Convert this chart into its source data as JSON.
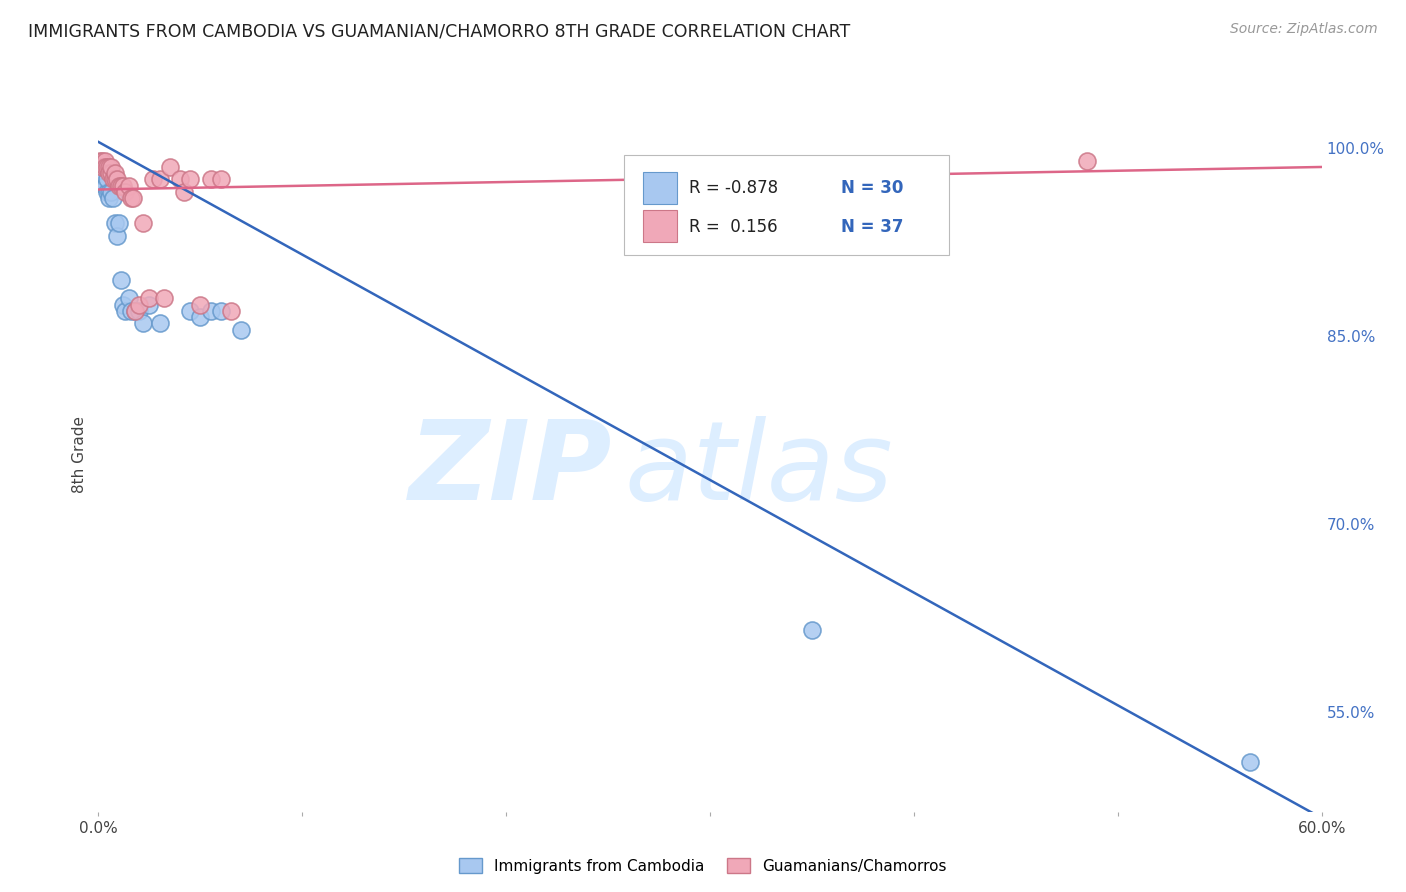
{
  "title": "IMMIGRANTS FROM CAMBODIA VS GUAMANIAN/CHAMORRO 8TH GRADE CORRELATION CHART",
  "source": "Source: ZipAtlas.com",
  "ylabel": "8th Grade",
  "xlim": [
    0.0,
    0.6
  ],
  "ylim": [
    0.47,
    1.04
  ],
  "x_ticks": [
    0.0,
    0.1,
    0.2,
    0.3,
    0.4,
    0.5,
    0.6
  ],
  "x_tick_labels": [
    "0.0%",
    "",
    "",
    "",
    "",
    "",
    "60.0%"
  ],
  "y_ticks_right": [
    0.55,
    0.7,
    0.85,
    1.0
  ],
  "y_tick_labels_right": [
    "55.0%",
    "70.0%",
    "85.0%",
    "100.0%"
  ],
  "grid_color": "#c8c8c8",
  "background_color": "#ffffff",
  "legend_r1": "R = -0.878",
  "legend_n1": "N = 30",
  "legend_r2": "R =  0.156",
  "legend_n2": "N = 37",
  "blue_color": "#a8c8f0",
  "blue_edge_color": "#6699cc",
  "pink_color": "#f0a8b8",
  "pink_edge_color": "#cc7788",
  "blue_line_color": "#3366bb",
  "pink_line_color": "#dd6688",
  "watermark_zip": "ZIP",
  "watermark_atlas": "atlas",
  "watermark_color": "#ddeeff",
  "blue_scatter_x": [
    0.001,
    0.002,
    0.003,
    0.003,
    0.004,
    0.004,
    0.005,
    0.005,
    0.006,
    0.007,
    0.008,
    0.009,
    0.01,
    0.011,
    0.012,
    0.013,
    0.015,
    0.016,
    0.018,
    0.02,
    0.022,
    0.025,
    0.03,
    0.045,
    0.05,
    0.055,
    0.06,
    0.07,
    0.35,
    0.565
  ],
  "blue_scatter_y": [
    0.98,
    0.975,
    0.97,
    0.97,
    0.965,
    0.975,
    0.965,
    0.96,
    0.965,
    0.96,
    0.94,
    0.93,
    0.94,
    0.895,
    0.875,
    0.87,
    0.88,
    0.87,
    0.87,
    0.87,
    0.86,
    0.875,
    0.86,
    0.87,
    0.865,
    0.87,
    0.87,
    0.855,
    0.615,
    0.51
  ],
  "pink_scatter_x": [
    0.001,
    0.002,
    0.002,
    0.003,
    0.003,
    0.004,
    0.005,
    0.005,
    0.006,
    0.006,
    0.007,
    0.008,
    0.008,
    0.009,
    0.01,
    0.011,
    0.012,
    0.013,
    0.015,
    0.016,
    0.017,
    0.018,
    0.02,
    0.022,
    0.025,
    0.027,
    0.03,
    0.032,
    0.035,
    0.04,
    0.042,
    0.045,
    0.05,
    0.055,
    0.06,
    0.065,
    0.485
  ],
  "pink_scatter_y": [
    0.99,
    0.99,
    0.985,
    0.99,
    0.985,
    0.985,
    0.985,
    0.98,
    0.98,
    0.985,
    0.975,
    0.975,
    0.98,
    0.975,
    0.97,
    0.97,
    0.97,
    0.965,
    0.97,
    0.96,
    0.96,
    0.87,
    0.875,
    0.94,
    0.88,
    0.975,
    0.975,
    0.88,
    0.985,
    0.975,
    0.965,
    0.975,
    0.875,
    0.975,
    0.975,
    0.87,
    0.99
  ],
  "blue_line_x0": 0.0,
  "blue_line_y0": 1.005,
  "blue_line_x1": 0.6,
  "blue_line_y1": 0.465,
  "pink_line_x0": 0.0,
  "pink_line_y0": 0.967,
  "pink_line_x1": 0.6,
  "pink_line_y1": 0.985
}
